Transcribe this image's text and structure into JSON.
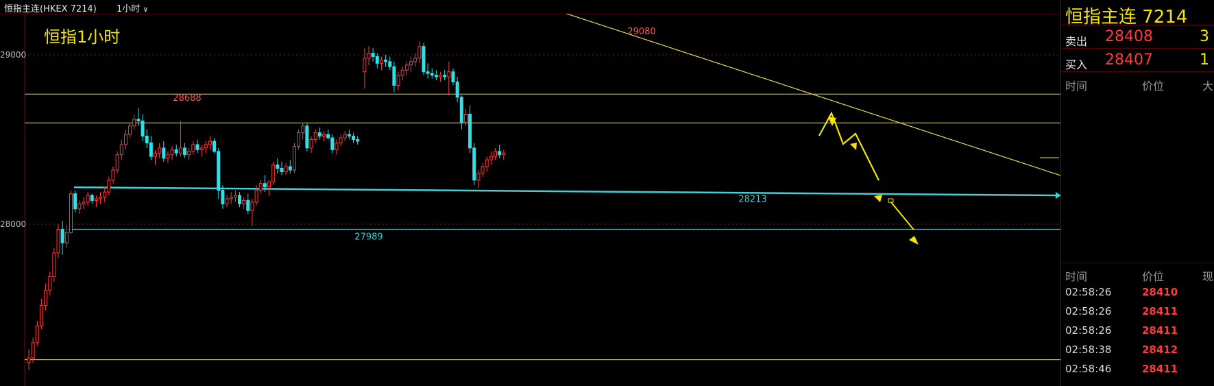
{
  "header": {
    "instrument": "恒指主连(HKEX 7214)",
    "timeframe": "1小时"
  },
  "chart_data": {
    "type": "candlestick",
    "title": "恒指1小时",
    "y_ticks": [
      29000,
      28000
    ],
    "ylim": [
      27180,
      29250
    ],
    "candles": [
      [
        27183,
        27260,
        27140,
        27210
      ],
      [
        27210,
        27330,
        27180,
        27300
      ],
      [
        27300,
        27430,
        27280,
        27400
      ],
      [
        27400,
        27560,
        27380,
        27520
      ],
      [
        27520,
        27650,
        27490,
        27610
      ],
      [
        27610,
        27720,
        27580,
        27690
      ],
      [
        27690,
        27860,
        27660,
        27830
      ],
      [
        27830,
        28000,
        27800,
        27970
      ],
      [
        27970,
        28020,
        27820,
        27890
      ],
      [
        27890,
        27990,
        27860,
        27950
      ],
      [
        27950,
        28200,
        27940,
        28180
      ],
      [
        28180,
        28200,
        28070,
        28090
      ],
      [
        28090,
        28140,
        28060,
        28120
      ],
      [
        28120,
        28160,
        28090,
        28130
      ],
      [
        28130,
        28190,
        28110,
        28170
      ],
      [
        28170,
        28180,
        28120,
        28140
      ],
      [
        28140,
        28170,
        28100,
        28150
      ],
      [
        28150,
        28190,
        28120,
        28160
      ],
      [
        28160,
        28220,
        28130,
        28190
      ],
      [
        28190,
        28280,
        28170,
        28260
      ],
      [
        28260,
        28340,
        28240,
        28320
      ],
      [
        28320,
        28430,
        28300,
        28410
      ],
      [
        28410,
        28500,
        28380,
        28470
      ],
      [
        28470,
        28560,
        28440,
        28530
      ],
      [
        28530,
        28600,
        28510,
        28580
      ],
      [
        28580,
        28650,
        28560,
        28620
      ],
      [
        28620,
        28688,
        28580,
        28610
      ],
      [
        28610,
        28650,
        28490,
        28520
      ],
      [
        28520,
        28560,
        28450,
        28480
      ],
      [
        28480,
        28520,
        28380,
        28400
      ],
      [
        28400,
        28440,
        28350,
        28420
      ],
      [
        28420,
        28480,
        28390,
        28450
      ],
      [
        28450,
        28490,
        28370,
        28390
      ],
      [
        28390,
        28430,
        28360,
        28410
      ],
      [
        28410,
        28460,
        28380,
        28440
      ],
      [
        28440,
        28470,
        28400,
        28420
      ],
      [
        28420,
        28610,
        28400,
        28450
      ],
      [
        28450,
        28480,
        28390,
        28410
      ],
      [
        28410,
        28450,
        28380,
        28430
      ],
      [
        28430,
        28490,
        28410,
        28470
      ],
      [
        28470,
        28500,
        28420,
        28440
      ],
      [
        28440,
        28470,
        28400,
        28450
      ],
      [
        28450,
        28490,
        28420,
        28470
      ],
      [
        28470,
        28520,
        28440,
        28490
      ],
      [
        28490,
        28510,
        28420,
        28430
      ],
      [
        28430,
        28450,
        28150,
        28200
      ],
      [
        28200,
        28230,
        28090,
        28120
      ],
      [
        28120,
        28170,
        28100,
        28150
      ],
      [
        28150,
        28190,
        28120,
        28160
      ],
      [
        28160,
        28200,
        28130,
        28170
      ],
      [
        28170,
        28190,
        28100,
        28120
      ],
      [
        28120,
        28160,
        28090,
        28140
      ],
      [
        28140,
        28180,
        28060,
        28080
      ],
      [
        28080,
        28150,
        27989,
        28130
      ],
      [
        28130,
        28230,
        28110,
        28200
      ],
      [
        28200,
        28260,
        28180,
        28240
      ],
      [
        28240,
        28290,
        28190,
        28220
      ],
      [
        28220,
        28260,
        28170,
        28250
      ],
      [
        28250,
        28370,
        28230,
        28350
      ],
      [
        28350,
        28390,
        28300,
        28330
      ],
      [
        28330,
        28370,
        28290,
        28310
      ],
      [
        28310,
        28360,
        28290,
        28340
      ],
      [
        28340,
        28380,
        28300,
        28320
      ],
      [
        28320,
        28480,
        28300,
        28460
      ],
      [
        28460,
        28560,
        28440,
        28540
      ],
      [
        28540,
        28600,
        28500,
        28580
      ],
      [
        28580,
        28600,
        28430,
        28450
      ],
      [
        28450,
        28520,
        28420,
        28500
      ],
      [
        28500,
        28560,
        28480,
        28540
      ],
      [
        28540,
        28570,
        28500,
        28520
      ],
      [
        28520,
        28550,
        28490,
        28530
      ],
      [
        28530,
        28560,
        28500,
        28510
      ],
      [
        28510,
        28530,
        28420,
        28440
      ],
      [
        28440,
        28500,
        28410,
        28480
      ],
      [
        28480,
        28530,
        28460,
        28510
      ],
      [
        28510,
        28550,
        28490,
        28530
      ],
      [
        28530,
        28560,
        28500,
        28520
      ],
      [
        28520,
        28540,
        28480,
        28500
      ],
      [
        28500,
        28520,
        28470,
        28490
      ],
      [
        28900,
        29040,
        28800,
        28980
      ],
      [
        28980,
        29050,
        28940,
        29010
      ],
      [
        29010,
        29040,
        28960,
        28990
      ],
      [
        28990,
        29010,
        28920,
        28950
      ],
      [
        28950,
        28990,
        28910,
        28970
      ],
      [
        28970,
        29000,
        28930,
        28960
      ],
      [
        28960,
        28990,
        28910,
        28930
      ],
      [
        28930,
        28960,
        28780,
        28820
      ],
      [
        28820,
        28900,
        28790,
        28880
      ],
      [
        28880,
        28930,
        28850,
        28910
      ],
      [
        28910,
        28960,
        28880,
        28940
      ],
      [
        28940,
        28990,
        28900,
        28960
      ],
      [
        28960,
        29010,
        28930,
        28980
      ],
      [
        28980,
        29080,
        28950,
        29050
      ],
      [
        29050,
        29070,
        28880,
        28900
      ],
      [
        28900,
        28950,
        28860,
        28890
      ],
      [
        28890,
        28920,
        28860,
        28880
      ],
      [
        28880,
        28910,
        28850,
        28870
      ],
      [
        28870,
        28900,
        28840,
        28880
      ],
      [
        28880,
        28910,
        28850,
        28870
      ],
      [
        28870,
        28960,
        28760,
        28900
      ],
      [
        28900,
        28920,
        28820,
        28840
      ],
      [
        28840,
        28870,
        28720,
        28750
      ],
      [
        28750,
        28760,
        28560,
        28600
      ],
      [
        28600,
        28680,
        28580,
        28650
      ],
      [
        28650,
        28700,
        28420,
        28450
      ],
      [
        28450,
        28480,
        28230,
        28260
      ],
      [
        28260,
        28320,
        28213,
        28300
      ],
      [
        28300,
        28360,
        28280,
        28340
      ],
      [
        28340,
        28400,
        28310,
        28380
      ],
      [
        28380,
        28430,
        28350,
        28400
      ],
      [
        28400,
        28450,
        28380,
        28430
      ],
      [
        28430,
        28470,
        28390,
        28410
      ],
      [
        28410,
        28440,
        28380,
        28420
      ]
    ],
    "horizontal_lines": [
      {
        "price": 28768,
        "color": "#e6e04a"
      },
      {
        "price": 28598,
        "color": "#e6e04a"
      },
      {
        "price": 27200,
        "color": "#e6e04a"
      },
      {
        "price": 27970,
        "color": "#3fd0d8"
      }
    ],
    "dotted_lines": [
      29000,
      28000
    ],
    "trendline": {
      "from": [
        0,
        29265
      ],
      "to": [
        1,
        28288
      ],
      "color": "#e6e04a"
    },
    "support_line": {
      "price_start": 28218,
      "price_end": 28170,
      "color": "#3fd0d8"
    },
    "annotations": [
      {
        "text": "28688",
        "price": 28688,
        "color": "#ff5555"
      },
      {
        "text": "29080",
        "price": 29080,
        "color": "#ff5555"
      },
      {
        "text": "27989",
        "price": 27989,
        "color": "#3fd0d8"
      },
      {
        "text": "28213",
        "price": 28213,
        "color": "#3fd0d8"
      }
    ],
    "colors": {
      "up": "#ff3b3b",
      "down": "#2fe0e8",
      "bg": "#000000",
      "grid_dot": "#8a1a1a"
    }
  },
  "panel": {
    "title": "恒指主连  7214",
    "sell": {
      "label": "卖出",
      "price": "28408",
      "qty": "3"
    },
    "buy": {
      "label": "买入",
      "price": "28407",
      "qty": "1"
    },
    "depth_headers": [
      "时间",
      "价位",
      "大"
    ],
    "tick_headers": [
      "时间",
      "价位",
      "现"
    ],
    "ticks": [
      {
        "time": "02:58:26",
        "price": "28410"
      },
      {
        "time": "02:58:26",
        "price": "28411"
      },
      {
        "time": "02:58:26",
        "price": "28411"
      },
      {
        "time": "02:58:38",
        "price": "28412"
      },
      {
        "time": "02:58:46",
        "price": "28411"
      }
    ]
  }
}
